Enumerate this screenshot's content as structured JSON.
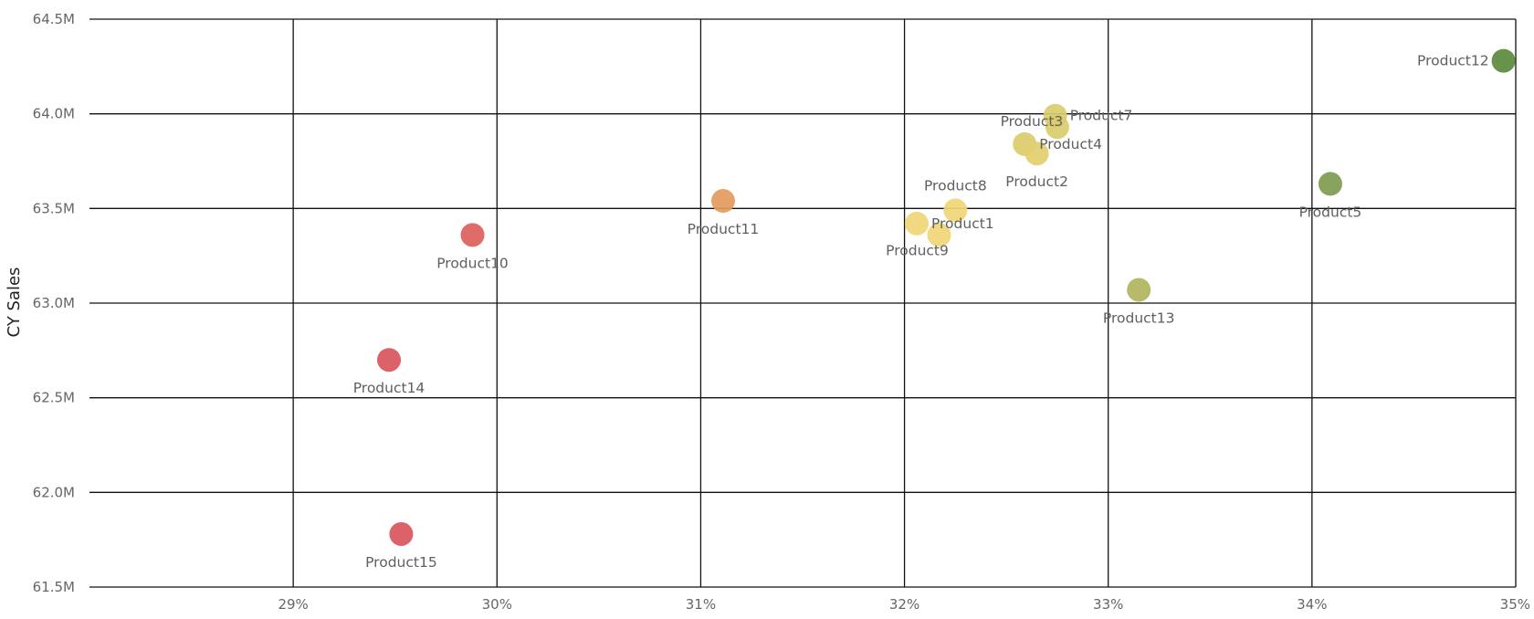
{
  "chart_data": {
    "type": "scatter",
    "ylabel": "CY Sales",
    "xlabel": "",
    "xlim": [
      28,
      35
    ],
    "ylim": [
      61.5,
      64.5
    ],
    "x_ticks": [
      {
        "value": 29,
        "label": "29%"
      },
      {
        "value": 30,
        "label": "30%"
      },
      {
        "value": 31,
        "label": "31%"
      },
      {
        "value": 32,
        "label": "32%"
      },
      {
        "value": 33,
        "label": "33%"
      },
      {
        "value": 34,
        "label": "34%"
      },
      {
        "value": 35,
        "label": "35%"
      }
    ],
    "y_ticks": [
      {
        "value": 64.5,
        "label": "64.5M"
      },
      {
        "value": 64.0,
        "label": "64.0M"
      },
      {
        "value": 63.5,
        "label": "63.5M"
      },
      {
        "value": 63.0,
        "label": "63.0M"
      },
      {
        "value": 62.5,
        "label": "62.5M"
      },
      {
        "value": 62.0,
        "label": "62.0M"
      },
      {
        "value": 61.5,
        "label": "61.5M"
      }
    ],
    "grid": true,
    "points": [
      {
        "name": "Product12",
        "x": 34.94,
        "y": 64.28,
        "color": "#5b8a3c",
        "label_pos": "left"
      },
      {
        "name": "Product7",
        "x": 32.74,
        "y": 63.99,
        "color": "#d9cc6e",
        "label_pos": "right"
      },
      {
        "name": "Product3",
        "x": 32.75,
        "y": 63.93,
        "color": "#d9cc6e",
        "label_pos": "above-left"
      },
      {
        "name": "Product4",
        "x": 32.59,
        "y": 63.84,
        "color": "#dccc6c",
        "label_pos": "right"
      },
      {
        "name": "Product2",
        "x": 32.65,
        "y": 63.79,
        "color": "#e2cf6e",
        "label_pos": "below"
      },
      {
        "name": "Product5",
        "x": 34.09,
        "y": 63.63,
        "color": "#7d9b50",
        "label_pos": "below"
      },
      {
        "name": "Product11",
        "x": 31.11,
        "y": 63.54,
        "color": "#e39a5e",
        "label_pos": "below"
      },
      {
        "name": "Product8",
        "x": 32.25,
        "y": 63.49,
        "color": "#efd675",
        "label_pos": "above"
      },
      {
        "name": "Product1",
        "x": 32.06,
        "y": 63.42,
        "color": "#efd675",
        "label_pos": "right"
      },
      {
        "name": "Product9",
        "x": 32.17,
        "y": 63.36,
        "color": "#efd675",
        "label_pos": "below-left"
      },
      {
        "name": "Product10",
        "x": 29.88,
        "y": 63.36,
        "color": "#dc5f5c",
        "label_pos": "below"
      },
      {
        "name": "Product13",
        "x": 33.15,
        "y": 63.07,
        "color": "#b2b45e",
        "label_pos": "below"
      },
      {
        "name": "Product14",
        "x": 29.47,
        "y": 62.7,
        "color": "#d9545b",
        "label_pos": "below"
      },
      {
        "name": "Product15",
        "x": 29.53,
        "y": 61.78,
        "color": "#d9545b",
        "label_pos": "below"
      }
    ]
  }
}
